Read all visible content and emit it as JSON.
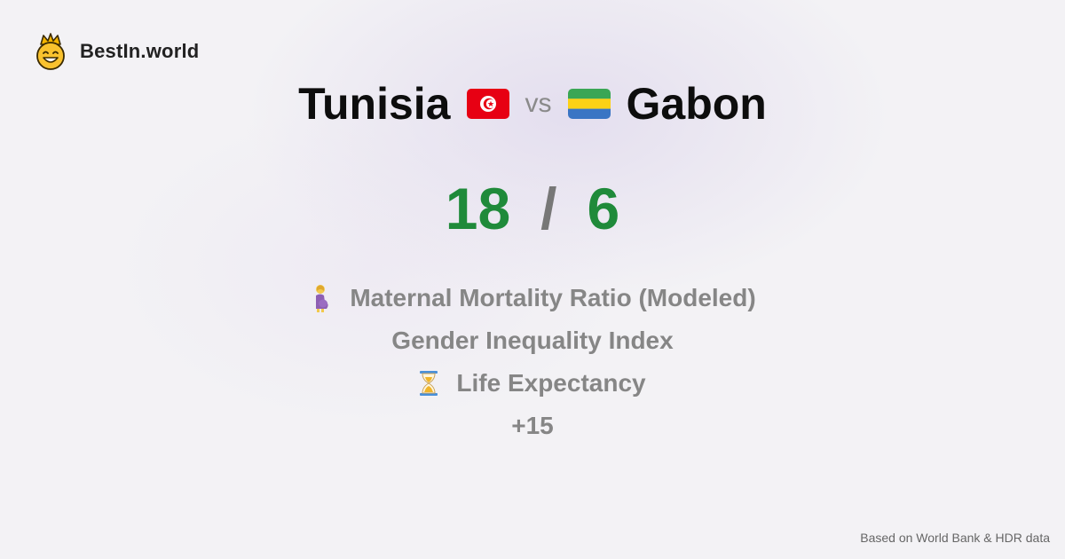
{
  "brand": {
    "name": "BestIn.world",
    "icon": "smiling-crowned-face-icon"
  },
  "comparison": {
    "country_a": "Tunisia",
    "flag_a": "tunisia-flag-icon",
    "vs_label": "vs",
    "country_b": "Gabon",
    "flag_b": "gabon-flag-icon"
  },
  "score": {
    "a": "18",
    "separator": "/",
    "b": "6"
  },
  "metrics": {
    "items": [
      {
        "icon": "pregnant-woman-icon",
        "label": "Maternal Mortality Ratio (Modeled)"
      },
      {
        "label": "Gender Inequality Index"
      },
      {
        "icon": "hourglass-icon",
        "label": "Life Expectancy"
      },
      {
        "label": "+15"
      }
    ]
  },
  "footer": {
    "note": "Based on World Bank & HDR data"
  },
  "colors": {
    "score": "#1f8a3a",
    "background": "#f3f2f5"
  }
}
